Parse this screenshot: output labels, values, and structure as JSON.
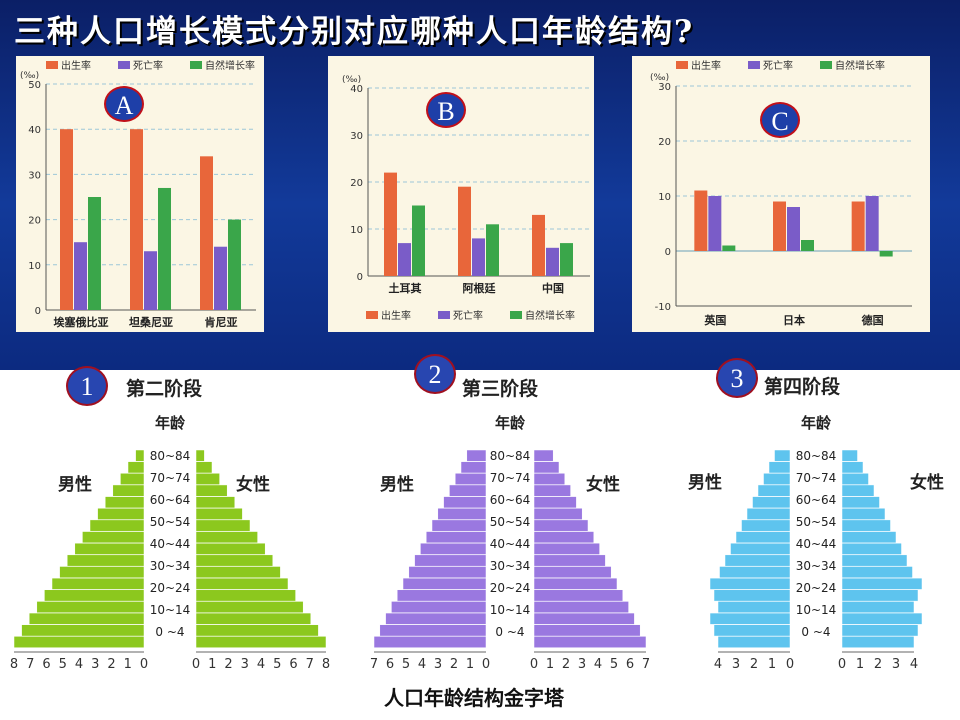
{
  "title": "三种人口增长模式分别对应哪种人口年龄结构?",
  "unit": "(‰)",
  "legend": {
    "birth": "出生率",
    "death": "死亡率",
    "natural": "自然增长率"
  },
  "colors": {
    "birth": "#e8663a",
    "death": "#7a5cc8",
    "natural": "#3aa64a",
    "greenPyr": "#8cc81e",
    "purplePyr": "#9a78e0",
    "bluePyr": "#5ec4ee"
  },
  "chart_data": [
    {
      "type": "bar",
      "badge": "A",
      "categories": [
        "埃塞俄比亚",
        "坦桑尼亚",
        "肯尼亚"
      ],
      "series": [
        {
          "name": "出生率",
          "values": [
            40,
            40,
            34
          ]
        },
        {
          "name": "死亡率",
          "values": [
            15,
            13,
            14
          ]
        },
        {
          "name": "自然增长率",
          "values": [
            25,
            27,
            20
          ]
        }
      ],
      "yticks": [
        0,
        10,
        20,
        30,
        40,
        50
      ],
      "ylim": [
        0,
        50
      ]
    },
    {
      "type": "bar",
      "badge": "B",
      "categories": [
        "土耳其",
        "阿根廷",
        "中国"
      ],
      "series": [
        {
          "name": "出生率",
          "values": [
            22,
            19,
            13
          ]
        },
        {
          "name": "死亡率",
          "values": [
            7,
            8,
            6
          ]
        },
        {
          "name": "自然增长率",
          "values": [
            15,
            11,
            7
          ]
        }
      ],
      "yticks": [
        0,
        10,
        20,
        30,
        40
      ],
      "ylim": [
        0,
        40
      ]
    },
    {
      "type": "bar",
      "badge": "C",
      "categories": [
        "英国",
        "日本",
        "德国"
      ],
      "series": [
        {
          "name": "出生率",
          "values": [
            11,
            9,
            9
          ]
        },
        {
          "name": "死亡率",
          "values": [
            10,
            8,
            10
          ]
        },
        {
          "name": "自然增长率",
          "values": [
            1,
            2,
            -1
          ]
        }
      ],
      "yticks": [
        -10,
        0,
        10,
        20,
        30
      ],
      "ylim": [
        -10,
        30
      ]
    }
  ],
  "pyramids": [
    {
      "num": "1",
      "stage": "第二阶段",
      "axisLeft": [
        "8",
        "7",
        "6",
        "5",
        "4",
        "3",
        "2",
        "1",
        "0"
      ],
      "axisRight": [
        "0",
        "1",
        "2",
        "3",
        "4",
        "5",
        "6",
        "7",
        "8"
      ]
    },
    {
      "num": "2",
      "stage": "第三阶段",
      "axisLeft": [
        "7",
        "6",
        "5",
        "4",
        "3",
        "2",
        "1",
        "0"
      ],
      "axisRight": [
        "0",
        "1",
        "2",
        "3",
        "4",
        "5",
        "6",
        "7"
      ]
    },
    {
      "num": "3",
      "stage": "第四阶段",
      "axisLeft": [
        "4",
        "3",
        "2",
        "1",
        "0"
      ],
      "axisRight": [
        "0",
        "1",
        "2",
        "3",
        "4"
      ]
    }
  ],
  "ageLabel": "年龄",
  "male": "男性",
  "female": "女性",
  "ageGroups": [
    "80~84",
    "70~74",
    "60~64",
    "50~54",
    "40~44",
    "30~34",
    "20~24",
    "10~14",
    "0 ~4"
  ],
  "caption": "人口年龄结构金字塔"
}
